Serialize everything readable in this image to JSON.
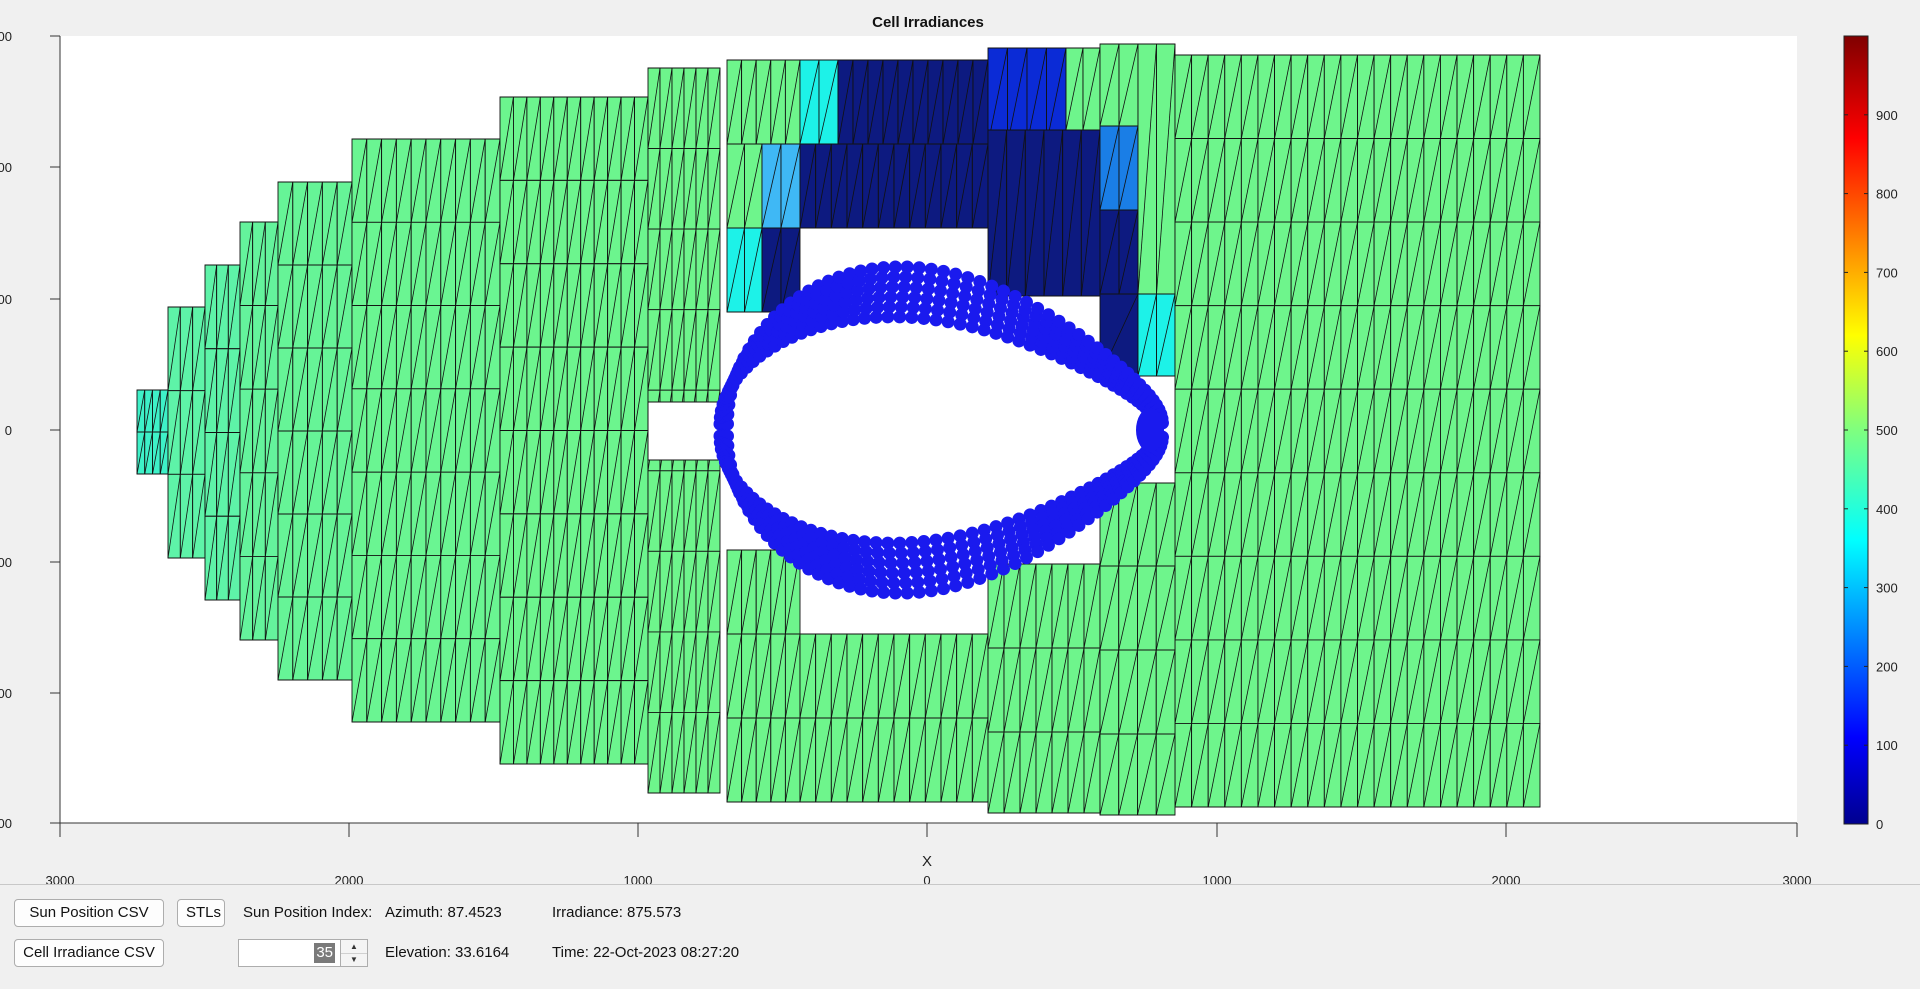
{
  "plot": {
    "title": "Cell Irradiances",
    "x_ticks": [
      "3000",
      "2000",
      "1000",
      "0",
      "1000",
      "2000",
      "3000"
    ],
    "y_ticks": [
      "00",
      "00",
      "00",
      "0",
      "00",
      "00",
      "00"
    ],
    "xlabel": "X",
    "ylabel": ""
  },
  "colorbar": {
    "ticks": [
      "0",
      "100",
      "200",
      "300",
      "400",
      "500",
      "600",
      "700",
      "800",
      "900"
    ],
    "min": 0,
    "max": 1000
  },
  "controls": {
    "sun_position_csv": "Sun Position CSV",
    "stls": "STLs",
    "cell_irradiance_csv": "Cell Irradiance CSV",
    "sun_position_index_label": "Sun Position Index:",
    "sun_position_index_value": "35",
    "azimuth": "Azimuth: 87.4523",
    "elevation": "Elevation: 33.6164",
    "irradiance": "Irradiance: 875.573",
    "time": "Time: 22-Oct-2023 08:27:20"
  },
  "colors": {
    "green_cell": "#6ef58c",
    "cyan_cell": "#1df2e8",
    "mid_blue_cell": "#3fb8f5",
    "navy_cell": "#0d1a80",
    "blue_cell": "#0b2bd6",
    "sun_points": "#1a1aee",
    "axes_bg": "#ffffff",
    "figure_bg": "#f0f0f0"
  },
  "mesh_cells_data": [
    {
      "v": 420
    },
    {
      "v": 430
    },
    {
      "v": 460
    },
    {
      "v": 470
    },
    {
      "v": 485
    },
    {
      "v": 490
    },
    {
      "v": 495
    },
    {
      "v": 500
    },
    {
      "v": 500
    },
    {
      "v": 500
    }
  ]
}
